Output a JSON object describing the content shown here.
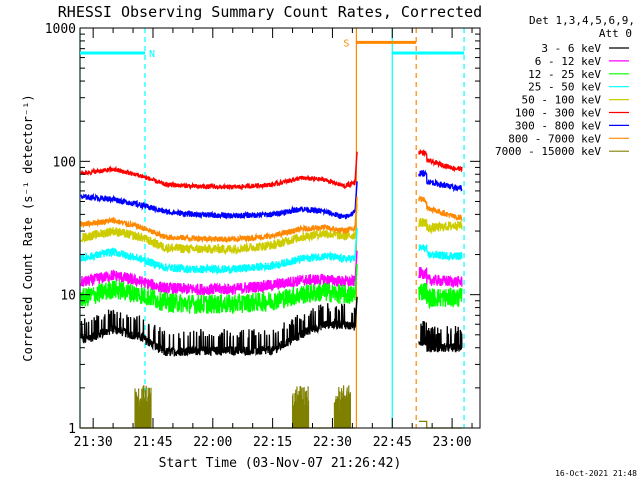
{
  "chart_data": {
    "type": "line",
    "title": "RHESSI Observing Summary Count Rates, Corrected",
    "xlabel": "Start Time (03-Nov-07 21:26:42)",
    "ylabel": "Corrected Count Rate (s⁻¹ detector⁻¹)",
    "y_scale": "log",
    "ylim": [
      1,
      1000
    ],
    "xlim": [
      "21:26:42",
      "23:07:00"
    ],
    "x_ticks": [
      "21:30",
      "21:45",
      "22:00",
      "22:15",
      "22:30",
      "22:45",
      "23:00"
    ],
    "y_ticks": [
      "1",
      "10",
      "100",
      "1000"
    ],
    "footer_timestamp": "16-Oct-2021 21:48",
    "legend": {
      "placement": "right",
      "header": [
        "Det 1,3,4,5,6,9,",
        "Att 0"
      ]
    },
    "series": [
      {
        "name": "3 - 6 keV",
        "color": "#000000",
        "x": [
          "21:28",
          "21:35",
          "21:42",
          "21:48",
          "21:55",
          "22:05",
          "22:15",
          "22:22",
          "22:28",
          "22:33",
          "22:52",
          "23:01"
        ],
        "values": [
          4.6,
          5.5,
          4.8,
          3.7,
          3.8,
          3.8,
          3.8,
          5.0,
          6.0,
          6.0,
          4.0,
          4.0
        ]
      },
      {
        "name": "6 - 12 keV",
        "color": "#ff00ff",
        "x": [
          "21:28",
          "21:35",
          "21:42",
          "21:48",
          "21:55",
          "22:05",
          "22:15",
          "22:22",
          "22:28",
          "22:33",
          "22:52",
          "23:01"
        ],
        "values": [
          12.5,
          14.0,
          12.5,
          11.2,
          11.0,
          11.0,
          11.8,
          12.8,
          13.0,
          12.5,
          13.0,
          12.5
        ]
      },
      {
        "name": "12 - 25 keV",
        "color": "#00ff00",
        "x": [
          "21:28",
          "21:35",
          "21:42",
          "21:48",
          "21:55",
          "22:05",
          "22:15",
          "22:22",
          "22:28",
          "22:33",
          "22:52",
          "23:01"
        ],
        "values": [
          9.5,
          11.0,
          10.0,
          8.8,
          8.5,
          8.5,
          9.0,
          10.0,
          10.5,
          10.0,
          9.5,
          9.5
        ]
      },
      {
        "name": "25 - 50 keV",
        "color": "#00ffff",
        "x": [
          "21:28",
          "21:35",
          "21:42",
          "21:48",
          "21:55",
          "22:05",
          "22:15",
          "22:22",
          "22:28",
          "22:33",
          "22:52",
          "23:01"
        ],
        "values": [
          19.0,
          21.0,
          18.5,
          16.0,
          15.5,
          15.5,
          16.5,
          18.5,
          19.5,
          18.5,
          20.0,
          19.5
        ]
      },
      {
        "name": "50 - 100 keV",
        "color": "#cccc00",
        "x": [
          "21:28",
          "21:35",
          "21:42",
          "21:48",
          "21:55",
          "22:05",
          "22:15",
          "22:22",
          "22:28",
          "22:33",
          "22:52",
          "23:01"
        ],
        "values": [
          27.0,
          30.0,
          27.0,
          22.5,
          22.0,
          22.0,
          23.5,
          27.0,
          29.0,
          27.5,
          31.0,
          33.0
        ]
      },
      {
        "name": "100 - 300 keV",
        "color": "#ff0000",
        "x": [
          "21:28",
          "21:35",
          "21:42",
          "21:48",
          "21:55",
          "22:05",
          "22:15",
          "22:22",
          "22:28",
          "22:33",
          "22:52",
          "23:01"
        ],
        "values": [
          82.0,
          87.0,
          78.0,
          67.0,
          65.0,
          64.0,
          67.0,
          75.0,
          73.0,
          65.0,
          105.0,
          88.0
        ]
      },
      {
        "name": "300 - 800 keV",
        "color": "#0000ff",
        "x": [
          "21:28",
          "21:35",
          "21:42",
          "21:48",
          "21:55",
          "22:05",
          "22:15",
          "22:22",
          "22:28",
          "22:33",
          "22:52",
          "23:01"
        ],
        "values": [
          54.0,
          52.0,
          47.0,
          42.0,
          40.0,
          39.0,
          40.0,
          44.0,
          42.0,
          38.0,
          73.0,
          63.0
        ]
      },
      {
        "name": "800 - 7000 keV",
        "color": "#ff8800",
        "x": [
          "21:28",
          "21:35",
          "21:42",
          "21:48",
          "21:55",
          "22:05",
          "22:15",
          "22:22",
          "22:28",
          "22:33",
          "22:52",
          "23:01"
        ],
        "values": [
          34.0,
          36.0,
          32.0,
          27.0,
          26.5,
          26.0,
          27.5,
          31.0,
          32.0,
          30.0,
          47.0,
          38.0
        ]
      },
      {
        "name": "7000 - 15000 keV",
        "color": "#808000",
        "x": [
          "21:28",
          "21:35",
          "21:42",
          "21:48",
          "21:55",
          "22:05",
          "22:15",
          "22:22",
          "22:28",
          "22:33",
          "22:52",
          "23:01"
        ],
        "values": [
          1.0,
          1.0,
          1.0,
          1.0,
          1.0,
          1.0,
          1.0,
          1.0,
          1.0,
          1.0,
          1.0,
          1.0
        ]
      }
    ],
    "state_bars": [
      {
        "label": "N",
        "color": "#00ffff",
        "y_value": 650,
        "segments": [
          [
            "21:26:42",
            "21:43:00"
          ],
          [
            "22:45:00",
            "23:03:00"
          ]
        ]
      },
      {
        "label": "S",
        "color": "#ff8800",
        "y_value": 780,
        "segments": [
          [
            "22:36:00",
            "22:51:00"
          ]
        ]
      }
    ],
    "markers": [
      {
        "color": "#00ffff",
        "style": "solid",
        "time": "21:26:42"
      },
      {
        "color": "#00ffff",
        "style": "dashed",
        "time": "21:43:00"
      },
      {
        "color": "#ff8800",
        "style": "solid",
        "time": "22:36:00"
      },
      {
        "color": "#00ffff",
        "style": "solid",
        "time": "22:45:00"
      },
      {
        "color": "#ff8800",
        "style": "dashed",
        "time": "22:51:00"
      },
      {
        "color": "#00ffff",
        "style": "dashed",
        "time": "23:03:00"
      }
    ],
    "gaps": [
      [
        "22:36:00",
        "22:51:00"
      ]
    ]
  }
}
